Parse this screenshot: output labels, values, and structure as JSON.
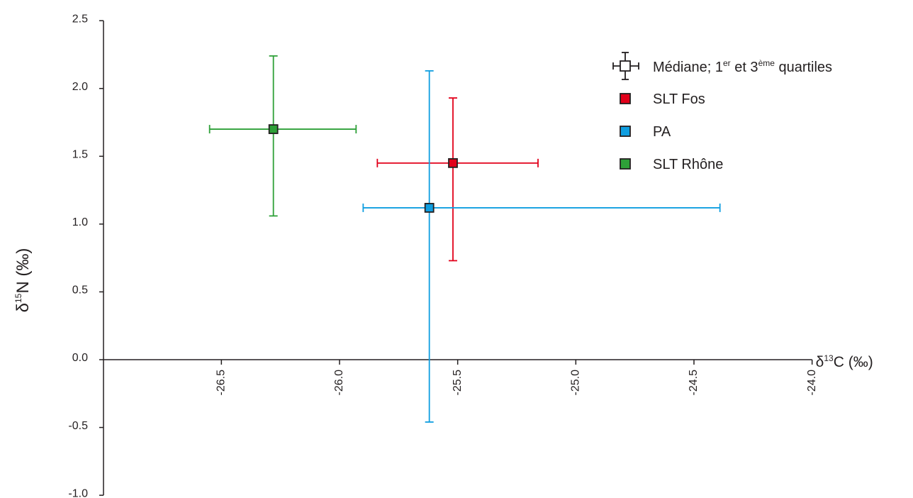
{
  "chart_data": {
    "type": "scatter",
    "xlabel": {
      "prefix": "δ",
      "sup": "13",
      "main": "C (‰)"
    },
    "ylabel": {
      "prefix": "δ",
      "sup": "15",
      "main": "N (‰)"
    },
    "xlim": [
      -27.0,
      -24.0
    ],
    "ylim": [
      -1.0,
      2.5
    ],
    "x_ticks": [
      -26.5,
      -26.0,
      -25.5,
      -25.0,
      -24.5,
      -24.0
    ],
    "x_tick_labels": [
      "-26.5",
      "-26.0",
      "-25.5",
      "-25.0",
      "-24.5",
      "-24.0"
    ],
    "y_ticks": [
      2.5,
      2.0,
      1.5,
      1.0,
      0.5,
      0.0,
      -0.5,
      -1.0
    ],
    "y_tick_labels": [
      "2.5",
      "2.0",
      "1.5",
      "1.0",
      "0.5",
      "0.0",
      "-0.5",
      "-1.0"
    ],
    "grid": false,
    "legend_position": "top-right",
    "legend_header": {
      "text_a": "Médiane; 1",
      "sup_a": "er",
      "text_b": " et 3",
      "sup_b": "ème",
      "text_c": " quartiles"
    },
    "series": [
      {
        "name": "SLT Fos",
        "color": "#e2001a",
        "median_x": -25.52,
        "median_y": 1.45,
        "x_q1": -25.84,
        "x_q3": -25.16,
        "y_q1": 0.73,
        "y_q3": 1.93
      },
      {
        "name": "PA",
        "color": "#0f9ee0",
        "median_x": -25.62,
        "median_y": 1.12,
        "x_q1": -25.9,
        "x_q3": -24.39,
        "y_q1": -0.46,
        "y_q3": 2.13
      },
      {
        "name": "SLT Rhône",
        "color": "#2ea038",
        "median_x": -26.28,
        "median_y": 1.7,
        "x_q1": -26.55,
        "x_q3": -25.93,
        "y_q1": 1.06,
        "y_q3": 2.24
      }
    ]
  }
}
